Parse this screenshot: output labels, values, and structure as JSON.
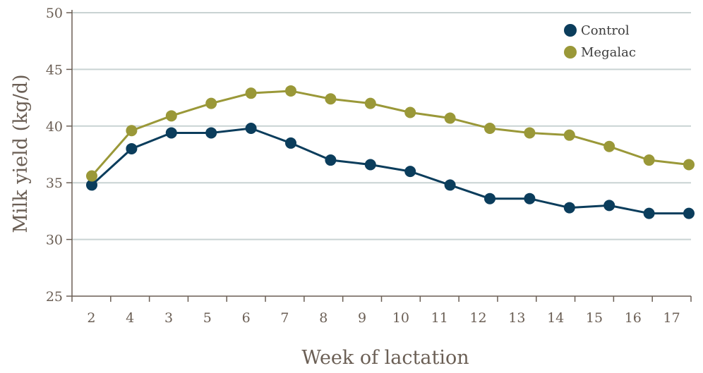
{
  "chart_data": {
    "type": "line",
    "xlabel": "Week of lactation",
    "ylabel": "Milk yield (kg/d)",
    "categories": [
      "2",
      "4",
      "3",
      "5",
      "6",
      "7",
      "8",
      "9",
      "10",
      "11",
      "12",
      "13",
      "14",
      "15",
      "16",
      "17"
    ],
    "yticks": [
      "25",
      "30",
      "35",
      "40",
      "45",
      "50"
    ],
    "ylim": [
      25,
      50
    ],
    "grid": "horizontal",
    "legend_position": "top-right",
    "series": [
      {
        "name": "Control",
        "color": "#0b3d5c",
        "values": [
          34.8,
          38,
          39.4,
          39.4,
          39.8,
          38.5,
          37,
          36.6,
          36,
          34.8,
          33.6,
          33.6,
          32.8,
          33,
          32.3,
          32.3
        ]
      },
      {
        "name": "Megalac",
        "color": "#9a9838",
        "values": [
          35.6,
          39.6,
          40.9,
          42,
          42.9,
          43.1,
          42.4,
          42,
          41.2,
          40.7,
          39.8,
          39.4,
          39.2,
          38.2,
          37,
          36.6
        ]
      }
    ]
  }
}
